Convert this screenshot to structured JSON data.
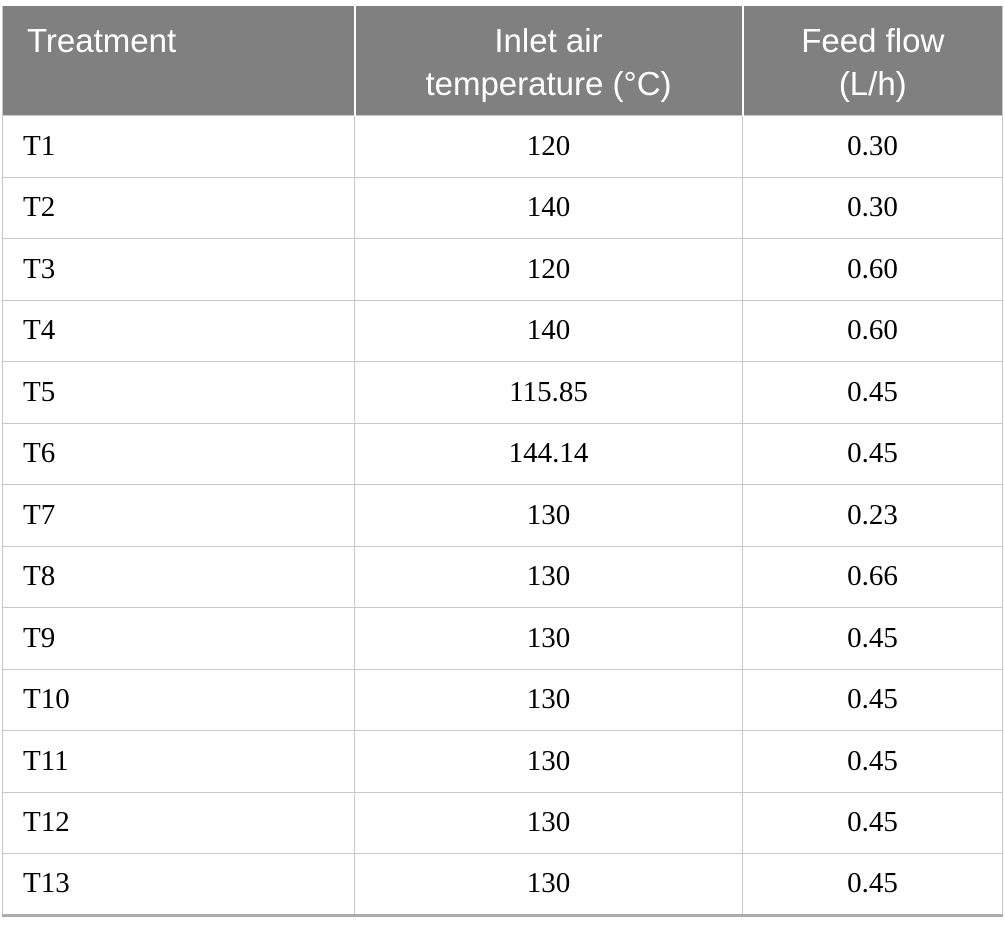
{
  "table": {
    "columns": [
      {
        "id": "treatment",
        "label": "Treatment",
        "align": "left"
      },
      {
        "id": "inlet_air_temperature_c",
        "label": "Inlet air\ntemperature (°C)",
        "align": "center"
      },
      {
        "id": "feed_flow_l_h",
        "label": "Feed flow\n(L/h)",
        "align": "center"
      }
    ],
    "rows": [
      [
        "T1",
        "120",
        "0.30"
      ],
      [
        "T2",
        "140",
        "0.30"
      ],
      [
        "T3",
        "120",
        "0.60"
      ],
      [
        "T4",
        "140",
        "0.60"
      ],
      [
        "T5",
        "115.85",
        "0.45"
      ],
      [
        "T6",
        "144.14",
        "0.45"
      ],
      [
        "T7",
        "130",
        "0.23"
      ],
      [
        "T8",
        "130",
        "0.66"
      ],
      [
        "T9",
        "130",
        "0.45"
      ],
      [
        "T10",
        "130",
        "0.45"
      ],
      [
        "T11",
        "130",
        "0.45"
      ],
      [
        "T12",
        "130",
        "0.45"
      ],
      [
        "T13",
        "130",
        "0.45"
      ]
    ]
  },
  "colors": {
    "header_background": "#808080",
    "header_text": "#ffffff",
    "body_text": "#000000",
    "grid_line": "#c8c8c8",
    "bottom_border": "#ababab"
  }
}
